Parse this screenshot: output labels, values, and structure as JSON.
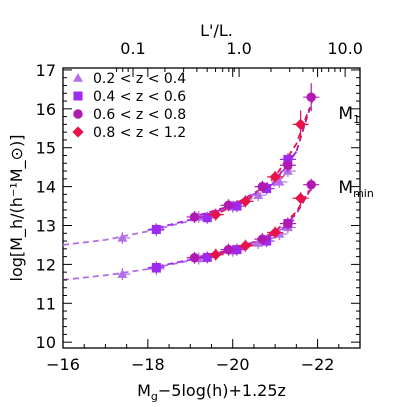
{
  "chart_data": {
    "type": "scatter",
    "xlabel": "M_g−5log(h)+1.25z",
    "ylabel": "log[M_h/(h⁻¹M_⊙)]",
    "top_axis_label": "L'/L.",
    "xlim": [
      -16,
      -23
    ],
    "ylim": [
      9.85,
      17.05
    ],
    "x_ticks": [
      -16,
      -18,
      -20,
      -22
    ],
    "x_ticklabels": [
      "−16",
      "−18",
      "−20",
      "−22"
    ],
    "y_ticks": [
      10,
      11,
      12,
      13,
      14,
      15,
      16,
      17
    ],
    "y_ticklabels": [
      "10",
      "11",
      "12",
      "13",
      "14",
      "15",
      "16",
      "17"
    ],
    "top_ticks": [
      0.1,
      1.0,
      10.0
    ],
    "top_ticklabels": [
      "0.1",
      "1.0",
      "10.0"
    ],
    "legend_position": "top-left",
    "annotations": [
      {
        "text": "M",
        "sub": "1",
        "x": -22.35,
        "y": 16.05
      },
      {
        "text": "M",
        "sub": "min",
        "x": -22.35,
        "y": 14.15
      }
    ],
    "series": [
      {
        "name": "0.2 < z < 0.4",
        "color": "#b46ee8",
        "marker": "triangle",
        "Mmin": {
          "x": [
            -17.4,
            -18.2,
            -19.2,
            -20.0,
            -20.6,
            -21.1,
            -21.3
          ],
          "y": [
            11.75,
            11.88,
            12.15,
            12.35,
            12.55,
            12.78,
            12.95
          ]
        },
        "M1": {
          "x": [
            -17.4,
            -18.2,
            -19.2,
            -20.0,
            -20.6,
            -21.1,
            -21.3
          ],
          "y": [
            12.68,
            12.88,
            13.22,
            13.48,
            13.78,
            14.12,
            14.4
          ]
        },
        "fit_Mmin": {
          "x": [
            -16,
            -17,
            -18,
            -19,
            -20,
            -20.5,
            -21,
            -21.4
          ],
          "y": [
            11.6,
            11.72,
            11.88,
            12.1,
            12.35,
            12.5,
            12.7,
            12.95
          ]
        },
        "fit_M1": {
          "x": [
            -16,
            -17,
            -18,
            -19,
            -20,
            -20.5,
            -21,
            -21.4
          ],
          "y": [
            12.5,
            12.63,
            12.85,
            13.12,
            13.5,
            13.72,
            14.05,
            14.5
          ]
        }
      },
      {
        "name": "0.4 < z < 0.6",
        "color": "#9c2af0",
        "marker": "square",
        "Mmin": {
          "x": [
            -18.2,
            -19.4,
            -20.1,
            -20.8,
            -21.3
          ],
          "y": [
            11.92,
            12.18,
            12.38,
            12.6,
            13.05
          ]
        },
        "M1": {
          "x": [
            -18.2,
            -19.4,
            -20.1,
            -20.8,
            -21.3
          ],
          "y": [
            12.9,
            13.2,
            13.5,
            13.95,
            14.7
          ]
        },
        "fit_Mmin": {
          "x": [
            -18,
            -19,
            -20,
            -21,
            -21.5
          ],
          "y": [
            11.9,
            12.12,
            12.36,
            12.75,
            13.2
          ]
        },
        "fit_M1": {
          "x": [
            -18,
            -19,
            -20,
            -21,
            -21.5
          ],
          "y": [
            12.88,
            13.15,
            13.5,
            14.1,
            14.9
          ]
        }
      },
      {
        "name": "0.6 < z < 0.8",
        "color": "#b01ab0",
        "marker": "circle",
        "Mmin": {
          "x": [
            -19.1,
            -19.9,
            -20.7,
            -21.3,
            -21.85
          ],
          "y": [
            12.17,
            12.38,
            12.65,
            13.05,
            14.05
          ]
        },
        "M1": {
          "x": [
            -19.1,
            -19.9,
            -20.7,
            -21.3,
            -21.85
          ],
          "y": [
            13.22,
            13.52,
            14.0,
            14.55,
            16.3
          ]
        },
        "fit_Mmin": {
          "x": [
            -19,
            -20,
            -21,
            -21.5,
            -21.9
          ],
          "y": [
            12.15,
            12.38,
            12.78,
            13.3,
            14.05
          ]
        },
        "fit_M1": {
          "x": [
            -19,
            -20,
            -21,
            -21.5,
            -21.9
          ],
          "y": [
            13.2,
            13.52,
            14.15,
            14.9,
            16.3
          ]
        }
      },
      {
        "name": "0.8 < z < 1.2",
        "color": "#e8124a",
        "marker": "diamond",
        "Mmin": {
          "x": [
            -19.6,
            -20.3,
            -21.0,
            -21.6
          ],
          "y": [
            12.25,
            12.48,
            12.82,
            13.7
          ]
        },
        "M1": {
          "x": [
            -19.6,
            -20.3,
            -21.0,
            -21.6
          ],
          "y": [
            13.28,
            13.62,
            14.25,
            15.6
          ]
        },
        "fit_Mmin": {
          "x": [
            -19.5,
            -20.3,
            -21,
            -21.5,
            -21.8
          ],
          "y": [
            12.22,
            12.45,
            12.85,
            13.35,
            13.9
          ]
        },
        "fit_M1": {
          "x": [
            -19.5,
            -20.3,
            -21,
            -21.5,
            -21.8
          ],
          "y": [
            13.25,
            13.62,
            14.25,
            15.1,
            16.0
          ]
        }
      }
    ]
  }
}
